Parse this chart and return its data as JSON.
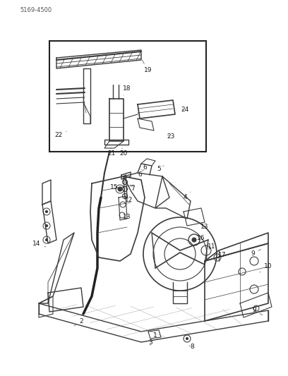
{
  "background_color": "#ffffff",
  "part_number": "5169-4500",
  "line_color": "#3a3a3a",
  "label_color": "#1a1a1a",
  "label_fontsize": 6.5,
  "fig_width": 4.08,
  "fig_height": 5.33,
  "dpi": 100
}
